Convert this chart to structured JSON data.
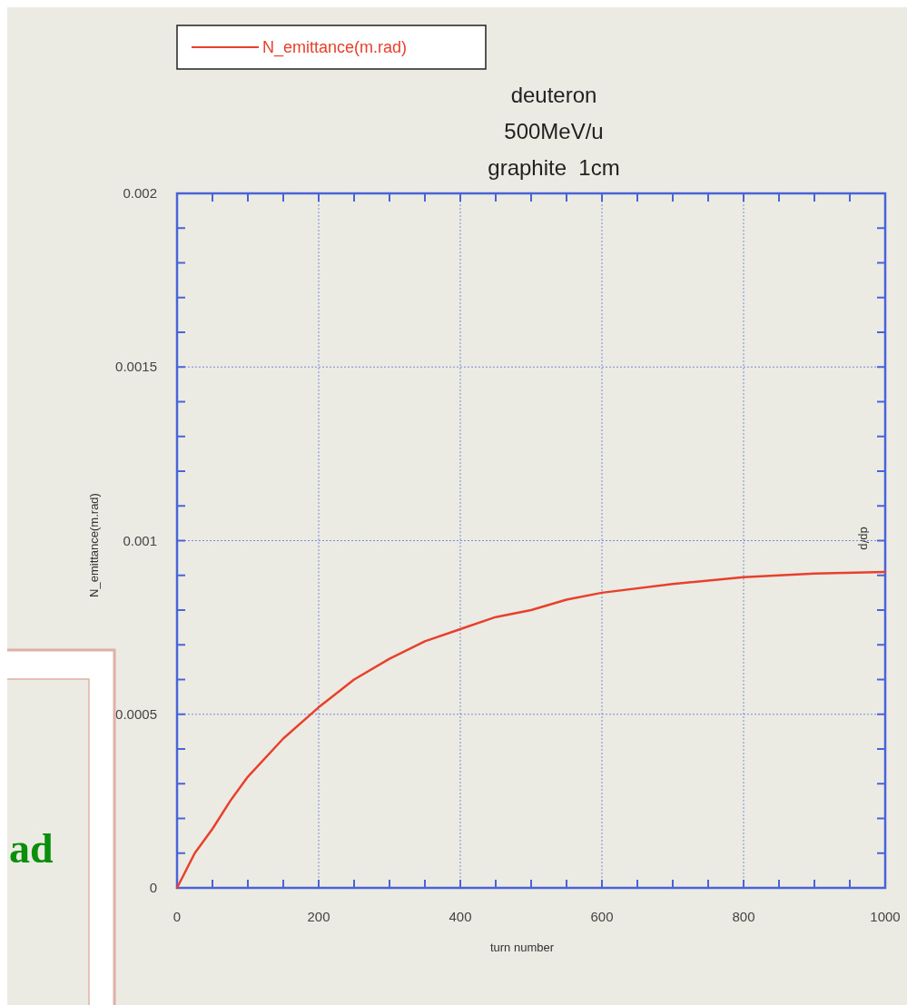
{
  "chart_data": {
    "type": "line",
    "title": "deuteron\n500MeV/u\ngraphite  1cm",
    "xlabel": "turn number",
    "ylabel": "N_emittance(m.rad)",
    "annotations": [
      "dp/p",
      "ad"
    ],
    "x": [
      0,
      25,
      50,
      75,
      100,
      150,
      200,
      250,
      300,
      350,
      400,
      450,
      500,
      550,
      600,
      700,
      800,
      900,
      1000
    ],
    "series": [
      {
        "name": "N_emittance(m.rad)",
        "color": "#e8402c",
        "values": [
          0,
          0.0001,
          0.00017,
          0.00025,
          0.00032,
          0.00043,
          0.00052,
          0.0006,
          0.00066,
          0.00071,
          0.000745,
          0.00078,
          0.0008,
          0.00083,
          0.00085,
          0.000875,
          0.000895,
          0.000905,
          0.00091
        ]
      }
    ],
    "xlim": [
      0,
      1000
    ],
    "ylim": [
      0,
      0.002
    ],
    "xticks": [
      0,
      {
        "value": 50,
        "label": null
      },
      {
        "value": 100,
        "label": null
      },
      {
        "value": 150,
        "label": null
      },
      200,
      {
        "value": 250,
        "label": null
      },
      {
        "value": 300,
        "label": null
      },
      {
        "value": 350,
        "label": null
      },
      400,
      {
        "value": 450,
        "label": null
      },
      {
        "value": 500,
        "label": null
      },
      {
        "value": 550,
        "label": null
      },
      600,
      {
        "value": 650,
        "label": null
      },
      {
        "value": 700,
        "label": null
      },
      {
        "value": 750,
        "label": null
      },
      800,
      {
        "value": 850,
        "label": null
      },
      {
        "value": 900,
        "label": null
      },
      {
        "value": 950,
        "label": null
      },
      1000
    ],
    "yticks": [
      0,
      {
        "value": 0.0001,
        "label": null
      },
      {
        "value": 0.0002,
        "label": null
      },
      {
        "value": 0.0003,
        "label": null
      },
      {
        "value": 0.0004,
        "label": null
      },
      0.0005,
      {
        "value": 0.0006,
        "label": null
      },
      {
        "value": 0.0007,
        "label": null
      },
      {
        "value": 0.0008,
        "label": null
      },
      {
        "value": 0.0009,
        "label": null
      },
      0.001,
      {
        "value": 0.0011,
        "label": null
      },
      {
        "value": 0.0012,
        "label": null
      },
      {
        "value": 0.0013,
        "label": null
      },
      {
        "value": 0.0014,
        "label": null
      },
      0.0015,
      {
        "value": 0.0016,
        "label": null
      },
      {
        "value": 0.0017,
        "label": null
      },
      {
        "value": 0.0018,
        "label": null
      },
      {
        "value": 0.0019,
        "label": null
      },
      0.002
    ],
    "grid": true,
    "legend": "top left",
    "line_style": "solid",
    "marker": "none"
  }
}
